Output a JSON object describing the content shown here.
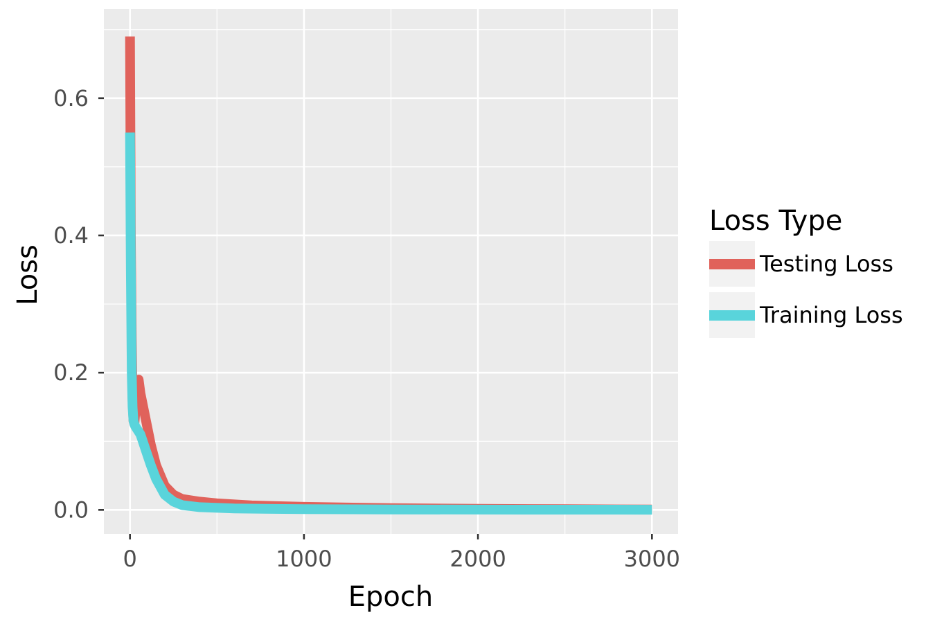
{
  "chart_data": {
    "type": "line",
    "title": "",
    "xlabel": "Epoch",
    "ylabel": "Loss",
    "xlim": [
      -150,
      3150
    ],
    "ylim": [
      -0.035,
      0.73
    ],
    "x_ticks": [
      0,
      1000,
      2000,
      3000
    ],
    "x_tick_labels": [
      "0",
      "1000",
      "2000",
      "3000"
    ],
    "y_ticks": [
      0.0,
      0.2,
      0.4,
      0.6
    ],
    "y_tick_labels": [
      "0.0",
      "0.2",
      "0.4",
      "0.6"
    ],
    "grid": true,
    "legend": {
      "title": "Loss Type",
      "position": "right"
    },
    "series": [
      {
        "name": "Testing Loss",
        "color": "#E0625B",
        "points": [
          [
            0,
            0.69
          ],
          [
            5,
            0.4
          ],
          [
            10,
            0.25
          ],
          [
            15,
            0.16
          ],
          [
            20,
            0.13
          ],
          [
            25,
            0.125
          ],
          [
            30,
            0.14
          ],
          [
            40,
            0.17
          ],
          [
            50,
            0.19
          ],
          [
            60,
            0.17
          ],
          [
            80,
            0.145
          ],
          [
            100,
            0.12
          ],
          [
            120,
            0.095
          ],
          [
            150,
            0.065
          ],
          [
            200,
            0.035
          ],
          [
            250,
            0.022
          ],
          [
            300,
            0.016
          ],
          [
            400,
            0.012
          ],
          [
            500,
            0.0095
          ],
          [
            700,
            0.0065
          ],
          [
            1000,
            0.0045
          ],
          [
            1500,
            0.0025
          ],
          [
            2000,
            0.0015
          ],
          [
            2500,
            0.001
          ],
          [
            3000,
            0.0005
          ]
        ]
      },
      {
        "name": "Training Loss",
        "color": "#59D4DB",
        "points": [
          [
            0,
            0.55
          ],
          [
            5,
            0.35
          ],
          [
            10,
            0.2
          ],
          [
            15,
            0.15
          ],
          [
            20,
            0.13
          ],
          [
            25,
            0.125
          ],
          [
            30,
            0.122
          ],
          [
            40,
            0.118
          ],
          [
            60,
            0.11
          ],
          [
            80,
            0.095
          ],
          [
            100,
            0.08
          ],
          [
            120,
            0.065
          ],
          [
            150,
            0.045
          ],
          [
            200,
            0.022
          ],
          [
            250,
            0.012
          ],
          [
            300,
            0.007
          ],
          [
            400,
            0.004
          ],
          [
            600,
            0.002
          ],
          [
            1000,
            0.001
          ],
          [
            1500,
            0.0006
          ],
          [
            2000,
            0.0004
          ],
          [
            3000,
            0.0002
          ]
        ]
      }
    ]
  }
}
